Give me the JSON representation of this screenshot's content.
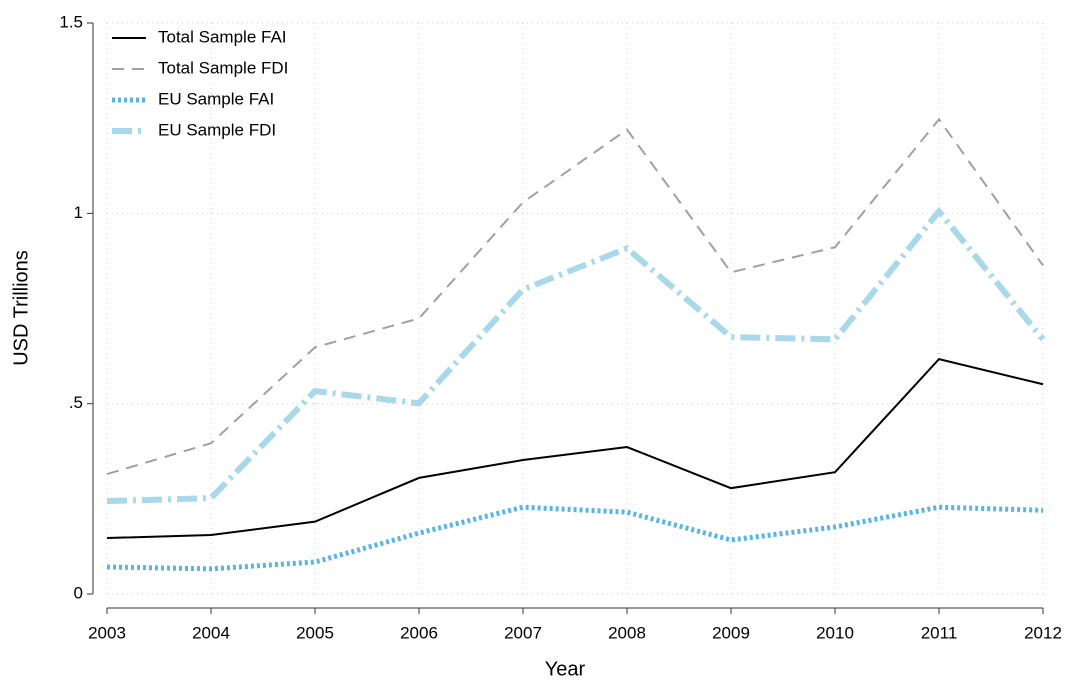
{
  "chart_data": {
    "type": "line",
    "xlabel": "Year",
    "ylabel": "USD Trillions",
    "x": [
      2003,
      2004,
      2005,
      2006,
      2007,
      2008,
      2009,
      2010,
      2011,
      2012
    ],
    "xlim": [
      2003,
      2012
    ],
    "xticks": [
      2003,
      2004,
      2005,
      2006,
      2007,
      2008,
      2009,
      2010,
      2011,
      2012
    ],
    "ylim": [
      0,
      1.5
    ],
    "yticks": [
      0,
      {
        "value": 0.5,
        "label": ".5"
      },
      1,
      1.5
    ],
    "grid": true,
    "legend": "top-left",
    "series": [
      {
        "name": "Total Sample FAI",
        "color": "#000000",
        "style": "solid",
        "values": [
          0.147,
          0.155,
          0.19,
          0.305,
          0.352,
          0.386,
          0.278,
          0.32,
          0.617,
          0.551
        ]
      },
      {
        "name": "Total Sample FDI",
        "color": "#a0a0a0",
        "style": "dashed",
        "values": [
          0.315,
          0.396,
          0.648,
          0.724,
          1.029,
          1.22,
          0.845,
          0.911,
          1.247,
          0.863
        ]
      },
      {
        "name": "EU Sample FAI",
        "color": "#5ab4e5",
        "style": "dotted",
        "values": [
          0.071,
          0.066,
          0.084,
          0.16,
          0.228,
          0.215,
          0.142,
          0.176,
          0.228,
          0.22
        ]
      },
      {
        "name": "EU Sample FDI",
        "color": "#a8d8ea",
        "style": "dashdot",
        "values": [
          0.244,
          0.252,
          0.533,
          0.501,
          0.8,
          0.908,
          0.675,
          0.669,
          1.005,
          0.669
        ]
      }
    ]
  }
}
